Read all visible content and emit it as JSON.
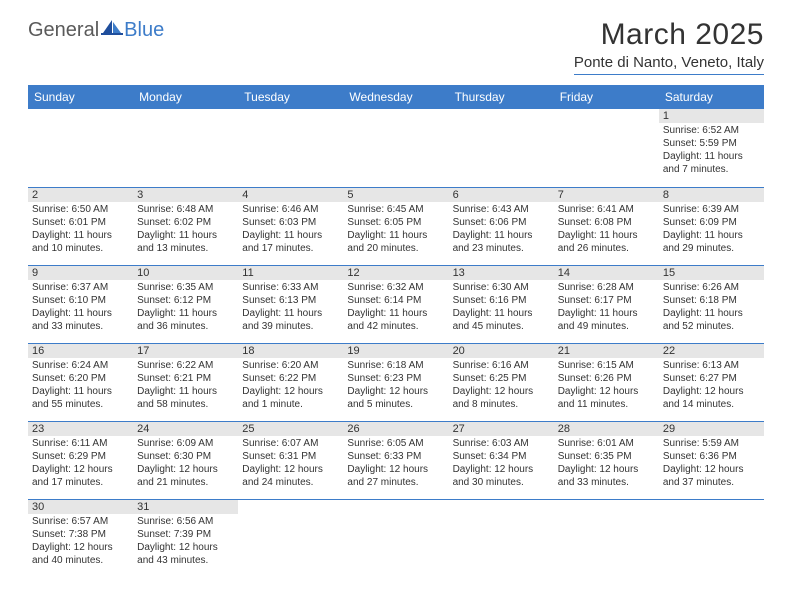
{
  "brand": {
    "general": "General",
    "blue": "Blue"
  },
  "header": {
    "month_title": "March 2025",
    "location": "Ponte di Nanto, Veneto, Italy"
  },
  "colors": {
    "header_bg": "#3d7cc9",
    "header_text": "#ffffff",
    "daynum_bg": "#e6e6e6",
    "border": "#3d7cc9",
    "body_text": "#333333"
  },
  "weekdays": [
    "Sunday",
    "Monday",
    "Tuesday",
    "Wednesday",
    "Thursday",
    "Friday",
    "Saturday"
  ],
  "weeks": [
    [
      null,
      null,
      null,
      null,
      null,
      null,
      {
        "n": "1",
        "sr": "Sunrise: 6:52 AM",
        "ss": "Sunset: 5:59 PM",
        "dl": "Daylight: 11 hours and 7 minutes."
      }
    ],
    [
      {
        "n": "2",
        "sr": "Sunrise: 6:50 AM",
        "ss": "Sunset: 6:01 PM",
        "dl": "Daylight: 11 hours and 10 minutes."
      },
      {
        "n": "3",
        "sr": "Sunrise: 6:48 AM",
        "ss": "Sunset: 6:02 PM",
        "dl": "Daylight: 11 hours and 13 minutes."
      },
      {
        "n": "4",
        "sr": "Sunrise: 6:46 AM",
        "ss": "Sunset: 6:03 PM",
        "dl": "Daylight: 11 hours and 17 minutes."
      },
      {
        "n": "5",
        "sr": "Sunrise: 6:45 AM",
        "ss": "Sunset: 6:05 PM",
        "dl": "Daylight: 11 hours and 20 minutes."
      },
      {
        "n": "6",
        "sr": "Sunrise: 6:43 AM",
        "ss": "Sunset: 6:06 PM",
        "dl": "Daylight: 11 hours and 23 minutes."
      },
      {
        "n": "7",
        "sr": "Sunrise: 6:41 AM",
        "ss": "Sunset: 6:08 PM",
        "dl": "Daylight: 11 hours and 26 minutes."
      },
      {
        "n": "8",
        "sr": "Sunrise: 6:39 AM",
        "ss": "Sunset: 6:09 PM",
        "dl": "Daylight: 11 hours and 29 minutes."
      }
    ],
    [
      {
        "n": "9",
        "sr": "Sunrise: 6:37 AM",
        "ss": "Sunset: 6:10 PM",
        "dl": "Daylight: 11 hours and 33 minutes."
      },
      {
        "n": "10",
        "sr": "Sunrise: 6:35 AM",
        "ss": "Sunset: 6:12 PM",
        "dl": "Daylight: 11 hours and 36 minutes."
      },
      {
        "n": "11",
        "sr": "Sunrise: 6:33 AM",
        "ss": "Sunset: 6:13 PM",
        "dl": "Daylight: 11 hours and 39 minutes."
      },
      {
        "n": "12",
        "sr": "Sunrise: 6:32 AM",
        "ss": "Sunset: 6:14 PM",
        "dl": "Daylight: 11 hours and 42 minutes."
      },
      {
        "n": "13",
        "sr": "Sunrise: 6:30 AM",
        "ss": "Sunset: 6:16 PM",
        "dl": "Daylight: 11 hours and 45 minutes."
      },
      {
        "n": "14",
        "sr": "Sunrise: 6:28 AM",
        "ss": "Sunset: 6:17 PM",
        "dl": "Daylight: 11 hours and 49 minutes."
      },
      {
        "n": "15",
        "sr": "Sunrise: 6:26 AM",
        "ss": "Sunset: 6:18 PM",
        "dl": "Daylight: 11 hours and 52 minutes."
      }
    ],
    [
      {
        "n": "16",
        "sr": "Sunrise: 6:24 AM",
        "ss": "Sunset: 6:20 PM",
        "dl": "Daylight: 11 hours and 55 minutes."
      },
      {
        "n": "17",
        "sr": "Sunrise: 6:22 AM",
        "ss": "Sunset: 6:21 PM",
        "dl": "Daylight: 11 hours and 58 minutes."
      },
      {
        "n": "18",
        "sr": "Sunrise: 6:20 AM",
        "ss": "Sunset: 6:22 PM",
        "dl": "Daylight: 12 hours and 1 minute."
      },
      {
        "n": "19",
        "sr": "Sunrise: 6:18 AM",
        "ss": "Sunset: 6:23 PM",
        "dl": "Daylight: 12 hours and 5 minutes."
      },
      {
        "n": "20",
        "sr": "Sunrise: 6:16 AM",
        "ss": "Sunset: 6:25 PM",
        "dl": "Daylight: 12 hours and 8 minutes."
      },
      {
        "n": "21",
        "sr": "Sunrise: 6:15 AM",
        "ss": "Sunset: 6:26 PM",
        "dl": "Daylight: 12 hours and 11 minutes."
      },
      {
        "n": "22",
        "sr": "Sunrise: 6:13 AM",
        "ss": "Sunset: 6:27 PM",
        "dl": "Daylight: 12 hours and 14 minutes."
      }
    ],
    [
      {
        "n": "23",
        "sr": "Sunrise: 6:11 AM",
        "ss": "Sunset: 6:29 PM",
        "dl": "Daylight: 12 hours and 17 minutes."
      },
      {
        "n": "24",
        "sr": "Sunrise: 6:09 AM",
        "ss": "Sunset: 6:30 PM",
        "dl": "Daylight: 12 hours and 21 minutes."
      },
      {
        "n": "25",
        "sr": "Sunrise: 6:07 AM",
        "ss": "Sunset: 6:31 PM",
        "dl": "Daylight: 12 hours and 24 minutes."
      },
      {
        "n": "26",
        "sr": "Sunrise: 6:05 AM",
        "ss": "Sunset: 6:33 PM",
        "dl": "Daylight: 12 hours and 27 minutes."
      },
      {
        "n": "27",
        "sr": "Sunrise: 6:03 AM",
        "ss": "Sunset: 6:34 PM",
        "dl": "Daylight: 12 hours and 30 minutes."
      },
      {
        "n": "28",
        "sr": "Sunrise: 6:01 AM",
        "ss": "Sunset: 6:35 PM",
        "dl": "Daylight: 12 hours and 33 minutes."
      },
      {
        "n": "29",
        "sr": "Sunrise: 5:59 AM",
        "ss": "Sunset: 6:36 PM",
        "dl": "Daylight: 12 hours and 37 minutes."
      }
    ],
    [
      {
        "n": "30",
        "sr": "Sunrise: 6:57 AM",
        "ss": "Sunset: 7:38 PM",
        "dl": "Daylight: 12 hours and 40 minutes."
      },
      {
        "n": "31",
        "sr": "Sunrise: 6:56 AM",
        "ss": "Sunset: 7:39 PM",
        "dl": "Daylight: 12 hours and 43 minutes."
      },
      null,
      null,
      null,
      null,
      null
    ]
  ]
}
